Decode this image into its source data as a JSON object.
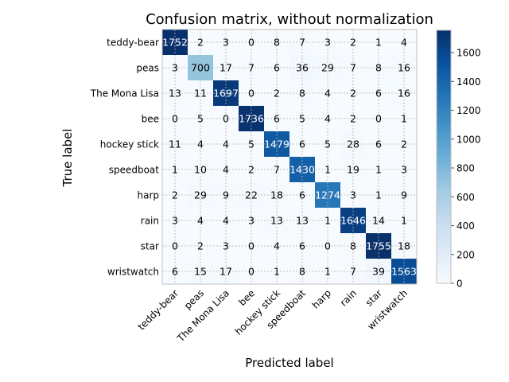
{
  "chart_data": {
    "type": "heatmap",
    "title": "Confusion matrix, without normalization",
    "xlabel": "Predicted label",
    "ylabel": "True label",
    "labels": [
      "teddy-bear",
      "peas",
      "The Mona Lisa",
      "bee",
      "hockey stick",
      "speedboat",
      "harp",
      "rain",
      "star",
      "wristwatch"
    ],
    "matrix": [
      [
        1752,
        2,
        3,
        0,
        8,
        7,
        3,
        2,
        1,
        4
      ],
      [
        3,
        700,
        17,
        7,
        6,
        36,
        29,
        7,
        8,
        16
      ],
      [
        13,
        11,
        1697,
        0,
        2,
        8,
        4,
        2,
        6,
        16
      ],
      [
        0,
        5,
        0,
        1736,
        6,
        5,
        4,
        2,
        0,
        1
      ],
      [
        11,
        4,
        4,
        5,
        1479,
        6,
        5,
        28,
        6,
        2
      ],
      [
        1,
        10,
        4,
        2,
        7,
        1430,
        1,
        19,
        1,
        3
      ],
      [
        2,
        29,
        9,
        22,
        18,
        6,
        1274,
        3,
        1,
        9
      ],
      [
        3,
        4,
        4,
        3,
        13,
        13,
        1,
        1646,
        14,
        1
      ],
      [
        0,
        2,
        3,
        0,
        4,
        6,
        0,
        8,
        1755,
        18
      ],
      [
        6,
        15,
        17,
        0,
        1,
        8,
        1,
        7,
        39,
        1563
      ]
    ],
    "colorbar": {
      "min": 0,
      "max": 1755,
      "ticks": [
        0,
        200,
        400,
        600,
        800,
        1000,
        1200,
        1400,
        1600
      ],
      "colormap": "Blues"
    },
    "grid": true
  }
}
